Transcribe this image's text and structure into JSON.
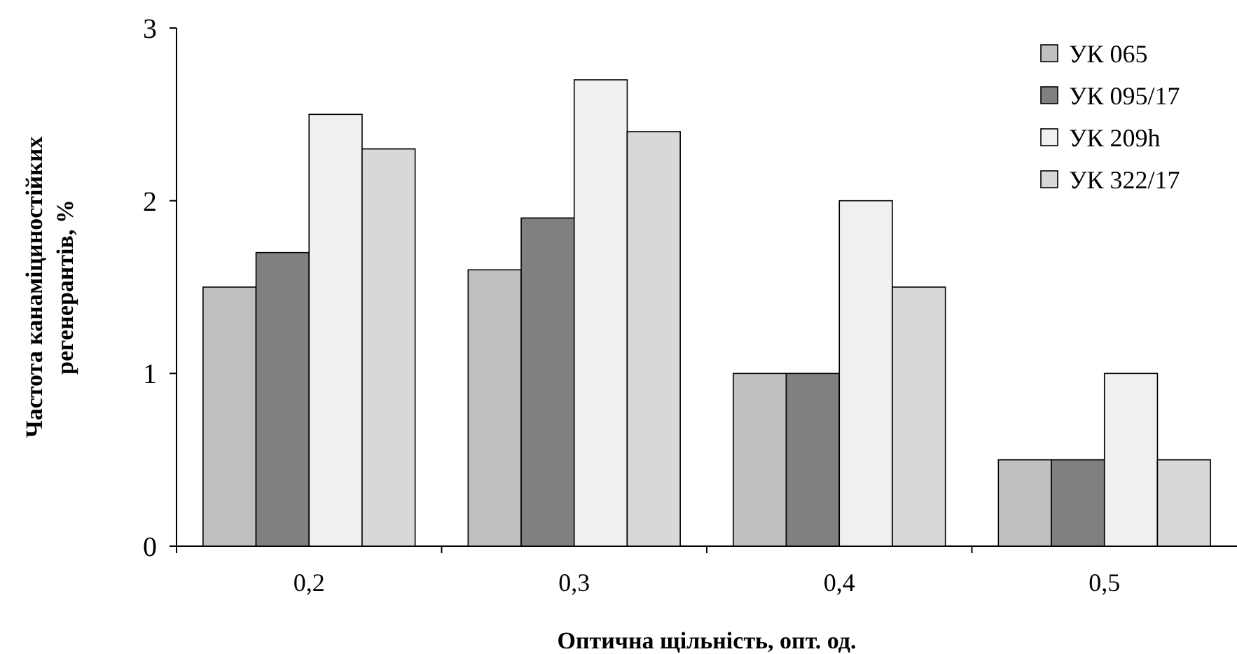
{
  "chart_data": {
    "type": "bar",
    "xlabel": "Оптична щільність, опт. од.",
    "ylabel": "Частота канаміциностійких регенерантів, %",
    "categories": [
      "0,2",
      "0,3",
      "0,4",
      "0,5"
    ],
    "series": [
      {
        "name": "УК 065",
        "color": "#c0c0c0",
        "values": [
          1.5,
          1.6,
          1.0,
          0.5
        ]
      },
      {
        "name": "УК 095/17",
        "color": "#808080",
        "values": [
          1.7,
          1.9,
          1.0,
          0.5
        ]
      },
      {
        "name": "УК 209h",
        "color": "#f0f0f0",
        "values": [
          2.5,
          2.7,
          2.0,
          1.0
        ]
      },
      {
        "name": "УК 322/17",
        "color": "#d8d8d8",
        "values": [
          2.3,
          2.4,
          1.5,
          0.5
        ]
      }
    ],
    "ylim": [
      0,
      3
    ],
    "yticks": [
      0,
      1,
      2,
      3
    ],
    "legend": "top right",
    "grid": false
  }
}
